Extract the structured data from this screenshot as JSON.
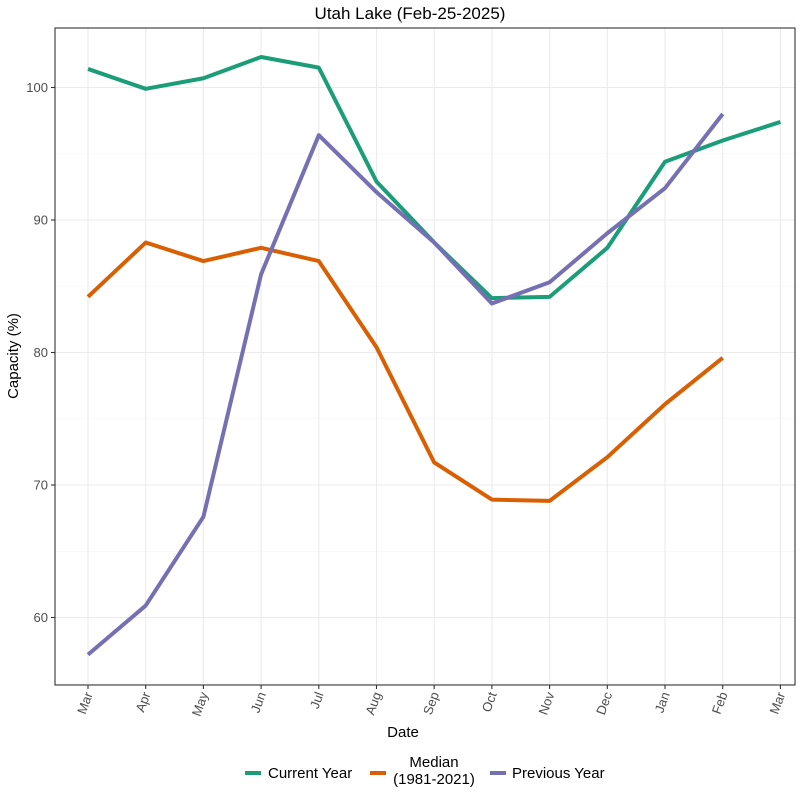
{
  "chart_data": {
    "type": "line",
    "title": "Utah Lake (Feb-25-2025)",
    "xlabel": "Date",
    "ylabel": "Capacity (%)",
    "categories": [
      "Mar",
      "Apr",
      "May",
      "Jun",
      "Jul",
      "Aug",
      "Sep",
      "Oct",
      "Nov",
      "Dec",
      "Jan",
      "Feb",
      "Mar"
    ],
    "ylim": [
      55,
      105
    ],
    "yticks": [
      60,
      70,
      80,
      90,
      100
    ],
    "grid": true,
    "legend_position": "bottom",
    "series": [
      {
        "name": "Current Year",
        "color": "#1b9e77",
        "values": [
          101.4,
          99.9,
          100.7,
          102.3,
          101.5,
          92.9,
          88.3,
          84.1,
          84.2,
          87.9,
          94.4,
          96.0,
          97.4
        ]
      },
      {
        "name": "Median\n(1981-2021)",
        "color": "#d95f02",
        "values": [
          84.2,
          88.3,
          86.9,
          87.9,
          86.9,
          80.4,
          71.7,
          68.9,
          68.8,
          72.1,
          76.1,
          79.6,
          null
        ]
      },
      {
        "name": "Previous Year",
        "color": "#7570b3",
        "values": [
          57.2,
          60.9,
          67.6,
          85.9,
          96.4,
          92.1,
          88.3,
          83.7,
          85.3,
          89.0,
          92.4,
          98.0,
          null
        ]
      }
    ]
  }
}
